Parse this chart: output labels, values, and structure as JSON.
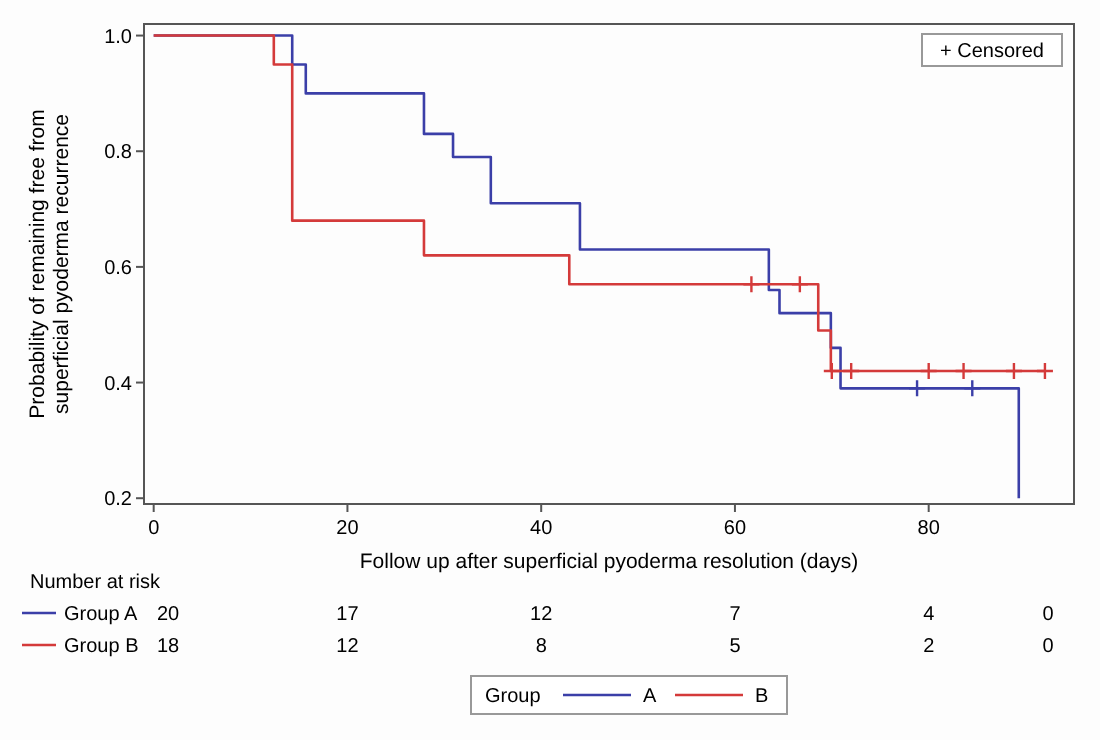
{
  "chart_data": {
    "type": "step",
    "xlabel": "Follow up after superficial pyoderma resolution (days)",
    "ylabel": "Probability of remaining free from\nsuperficial pyoderma recurrence",
    "legend_title": "Group",
    "legend": "bottom",
    "grid": false,
    "xlim": [
      -1,
      95
    ],
    "xticks": [
      0,
      20,
      40,
      60,
      80
    ],
    "ylim": [
      0.19,
      1.02
    ],
    "yticks": [
      {
        "value": 0.2,
        "label": "0.2"
      },
      {
        "value": 0.4,
        "label": "0.4"
      },
      {
        "value": 0.6,
        "label": "0.6"
      },
      {
        "value": 0.8,
        "label": "0.8"
      },
      {
        "value": 1,
        "label": "1.0"
      }
    ],
    "series": [
      {
        "name": "A",
        "color": "#3b3fa8",
        "x": [
          0,
          14.3,
          15.7,
          27.9,
          30.9,
          34.8,
          44,
          63.5,
          64.6,
          69.9,
          70.9,
          89.3
        ],
        "values": [
          1,
          0.95,
          0.9,
          0.83,
          0.79,
          0.71,
          0.63,
          0.56,
          0.52,
          0.46,
          0.39,
          0.2
        ]
      },
      {
        "name": "B",
        "color": "#d43a3a",
        "x": [
          0,
          12.4,
          14.3,
          27.9,
          42.9,
          68.6,
          69.9,
          92
        ],
        "values": [
          1,
          0.95,
          0.68,
          0.62,
          0.57,
          0.49,
          0.42,
          0.42
        ]
      },
      {
        "type": "scatter",
        "marker": "cross",
        "color": "#3b3fa8",
        "x": [
          78.8,
          84.5
        ],
        "values": [
          0.39,
          0.39
        ]
      },
      {
        "type": "scatter",
        "marker": "cross",
        "color": "#d43a3a",
        "x": [
          61.7,
          66.7,
          70,
          72,
          80,
          83.6,
          88.8,
          92
        ],
        "values": [
          0.57,
          0.57,
          0.42,
          0.42,
          0.42,
          0.42,
          0.42,
          0.42
        ]
      }
    ],
    "annotations": [
      "+ Censored",
      "Number at risk",
      "Group A",
      "20",
      "17",
      "12",
      "7",
      "4",
      "0",
      "Group B",
      "18",
      "12",
      "8",
      "5",
      "2",
      "0"
    ]
  }
}
